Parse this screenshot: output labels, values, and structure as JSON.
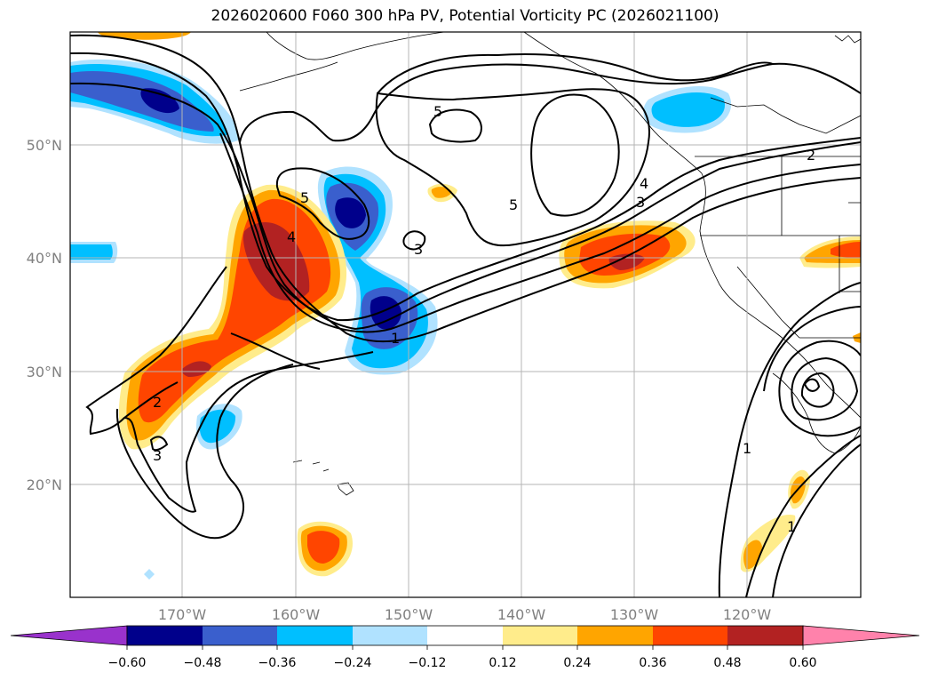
{
  "title": "2026020600 F060 300 hPa PV, Potential Vorticity PC (2026021100)",
  "lat_labels": [
    "50°N",
    "40°N",
    "30°N",
    "20°N"
  ],
  "lon_labels": [
    "170°W",
    "160°W",
    "150°W",
    "140°W",
    "130°W",
    "120°W"
  ],
  "contour_labels": [
    "5",
    "5",
    "5",
    "4",
    "4",
    "3",
    "3",
    "3",
    "2",
    "2",
    "1",
    "1",
    "1"
  ],
  "colorbar": {
    "ticks": [
      "−0.60",
      "−0.48",
      "−0.36",
      "−0.24",
      "−0.12",
      "0.12",
      "0.24",
      "0.36",
      "0.48",
      "0.60"
    ],
    "colors": [
      "#9932cc",
      "#00008b",
      "#3a5fcd",
      "#00bfff",
      "#b0e2ff",
      "#ffffff",
      "#ffec8b",
      "#ffa500",
      "#ff4500",
      "#b22222",
      "#ff82ab"
    ]
  }
}
